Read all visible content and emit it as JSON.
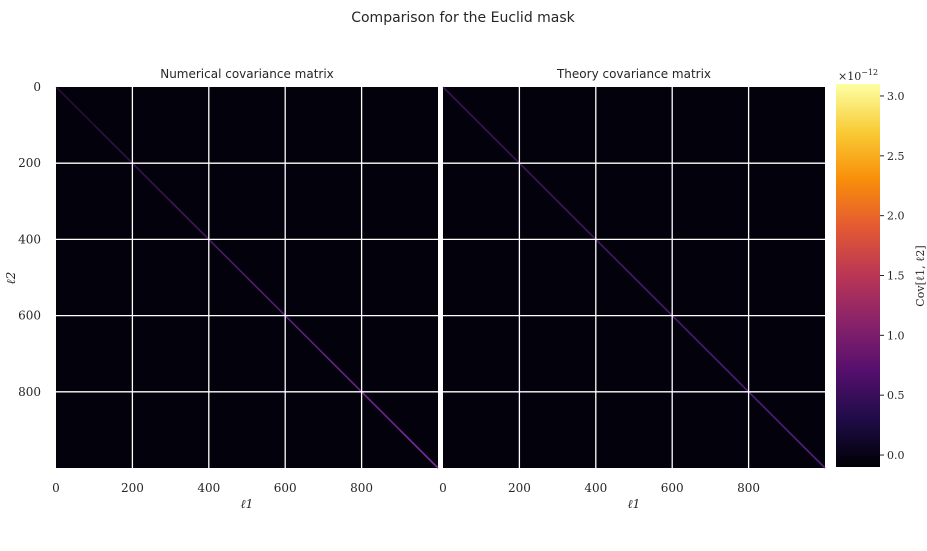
{
  "figure": {
    "title": "Comparison for the Euclid mask",
    "background": "#ffffff",
    "matrix_background": "#03020c",
    "grid_color": "#ffffff"
  },
  "chart_data": [
    {
      "type": "heatmap",
      "title": "Numerical covariance matrix",
      "xlabel": "ℓ1",
      "ylabel": "ℓ2",
      "xlim": [
        0,
        1000
      ],
      "ylim": [
        1000,
        0
      ],
      "x_ticks": [
        0,
        200,
        400,
        600,
        800
      ],
      "y_ticks": [
        0,
        200,
        400,
        600,
        800
      ],
      "grid": true,
      "structure": "diagonal",
      "diagonal_value_start": 0.3,
      "diagonal_value_end": 1.0,
      "diagonal_color": "#7a2a9c",
      "off_diagonal_value": 0.0
    },
    {
      "type": "heatmap",
      "title": "Theory covariance matrix",
      "xlabel": "ℓ1",
      "xlim": [
        0,
        1000
      ],
      "ylim": [
        1000,
        0
      ],
      "x_ticks": [
        0,
        200,
        400,
        600,
        800
      ],
      "grid": true,
      "structure": "diagonal",
      "diagonal_value_start": 0.5,
      "diagonal_value_end": 0.8,
      "diagonal_color": "#6a2599",
      "off_diagonal_value": 0.0
    }
  ],
  "colorbar": {
    "label": "Cov[ℓ1, ℓ2]",
    "scale_prefix": "×10",
    "scale_exponent": "−12",
    "range": [
      -0.1,
      3.1
    ],
    "ticks": [
      "0.0",
      "0.5",
      "1.0",
      "1.5",
      "2.0",
      "2.5",
      "3.0"
    ],
    "colormap": "inferno",
    "colormap_stops": [
      "#000004",
      "#1f0c48",
      "#550f6d",
      "#88226a",
      "#ba3655",
      "#e35933",
      "#f98e09",
      "#f9cb35",
      "#fcffa4"
    ]
  }
}
